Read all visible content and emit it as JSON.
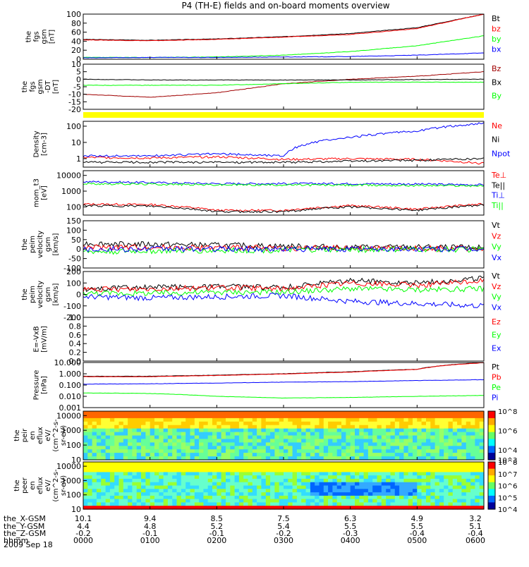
{
  "title": "P4 (TH-E) fields and on-board moments overview",
  "date": "2009 Sep 18",
  "footer_rows": [
    {
      "label": "the_X-GSM",
      "values": [
        "10.1",
        "9.4",
        "8.5",
        "7.5",
        "6.3",
        "4.9",
        "3.2"
      ]
    },
    {
      "label": "the_Y-GSM",
      "values": [
        "4.4",
        "4.8",
        "5.2",
        "5.4",
        "5.5",
        "5.5",
        "5.1"
      ]
    },
    {
      "label": "the_Z-GSM",
      "values": [
        "-0.2",
        "-0.1",
        "-0.1",
        "-0.2",
        "-0.3",
        "-0.4",
        "-0.4"
      ]
    },
    {
      "label": "hhmm",
      "values": [
        "0000",
        "0100",
        "0200",
        "0300",
        "0400",
        "0500",
        "0600"
      ]
    }
  ],
  "colors": {
    "black": "#000000",
    "red": "#ff0000",
    "green": "#00ff00",
    "blue": "#0000ff",
    "darkred": "#a00000",
    "yellow": "#ffff00"
  },
  "chart_data": [
    {
      "id": "fgs-gsm-total",
      "type": "line",
      "ylabel_lines": [
        "the",
        "fgs",
        "gsm",
        "[nT]"
      ],
      "ylim": [
        0,
        100
      ],
      "yticks": [
        "100",
        "80",
        "60",
        "40",
        "20",
        "0"
      ],
      "x": [
        "0000",
        "0100",
        "0200",
        "0300",
        "0400",
        "0500",
        "0600"
      ],
      "series": [
        {
          "name": "Bt",
          "color": "black",
          "values": [
            44,
            42,
            45,
            50,
            57,
            70,
            100
          ]
        },
        {
          "name": "bz",
          "color": "red",
          "values": [
            43,
            41,
            44,
            49,
            55,
            68,
            100
          ]
        },
        {
          "name": "by",
          "color": "green",
          "values": [
            4,
            4,
            5,
            9,
            17,
            30,
            52
          ]
        },
        {
          "name": "bx",
          "color": "blue",
          "values": [
            3,
            4,
            4,
            5,
            6,
            9,
            14
          ]
        }
      ]
    },
    {
      "id": "fgs-gsm-detrended",
      "type": "line",
      "ylabel_lines": [
        "the",
        "fgs",
        "gsm",
        "-DT",
        "[nT]"
      ],
      "ylim": [
        -20,
        10
      ],
      "yticks": [
        "10",
        "5",
        "0",
        "-5",
        "-10",
        "-15",
        "-20"
      ],
      "series": [
        {
          "name": "Bz",
          "color": "darkred",
          "values": [
            -10,
            -12,
            -9,
            -3,
            0,
            2,
            5
          ]
        },
        {
          "name": "Bx",
          "color": "black",
          "values": [
            0,
            -0.5,
            -0.5,
            -0.5,
            -0.5,
            -0.2,
            0
          ]
        },
        {
          "name": "By",
          "color": "green",
          "values": [
            -4,
            -4,
            -4,
            -3,
            -2,
            -2,
            -2
          ]
        }
      ]
    },
    {
      "id": "density",
      "type": "line",
      "ylabel_lines": [
        "Density",
        "[cm-3]"
      ],
      "ylim": [
        0.3,
        200
      ],
      "log": true,
      "yticks": [
        "100",
        "10",
        "1"
      ],
      "series": [
        {
          "name": "Ne",
          "color": "red",
          "values": [
            1.2,
            1.1,
            1.3,
            0.9,
            1.0,
            0.9,
            0.5
          ]
        },
        {
          "name": "Ni",
          "color": "black",
          "values": [
            0.6,
            0.6,
            0.6,
            0.6,
            0.7,
            0.8,
            1.0
          ]
        },
        {
          "name": "Npot",
          "color": "blue",
          "values": [
            1.5,
            1.5,
            2.0,
            1.5,
            20,
            50,
            150
          ]
        }
      ],
      "legend_extra": [
        {
          "name": "",
          "color": "black"
        }
      ]
    },
    {
      "id": "temperature",
      "type": "line",
      "ylabel_lines": [
        "mom_t3",
        "[eV]"
      ],
      "ylim": [
        30,
        20000
      ],
      "log": true,
      "yticks": [
        "10000",
        "1000",
        "100"
      ],
      "series": [
        {
          "name": "Te⊥",
          "color": "red",
          "values": [
            150,
            140,
            60,
            60,
            120,
            70,
            150
          ]
        },
        {
          "name": "Te||",
          "color": "black",
          "values": [
            120,
            110,
            50,
            50,
            100,
            60,
            130
          ]
        },
        {
          "name": "Ti⊥",
          "color": "blue",
          "values": [
            4000,
            3500,
            3000,
            3000,
            3000,
            2800,
            2500
          ]
        },
        {
          "name": "Ti||",
          "color": "green",
          "values": [
            3000,
            2800,
            2500,
            2500,
            2400,
            2300,
            2200
          ]
        }
      ]
    },
    {
      "id": "peim-velocity",
      "type": "line",
      "ylabel_lines": [
        "the",
        "peim",
        "velocity",
        "gsm",
        "[km/s]"
      ],
      "ylim": [
        -100,
        150
      ],
      "yticks": [
        "150",
        "100",
        "50",
        "0",
        "-50",
        "-100"
      ],
      "series": [
        {
          "name": "Vt",
          "color": "black",
          "values": [
            30,
            25,
            20,
            15,
            10,
            10,
            8
          ]
        },
        {
          "name": "Vz",
          "color": "red",
          "values": [
            10,
            10,
            8,
            5,
            5,
            3,
            3
          ]
        },
        {
          "name": "Vy",
          "color": "green",
          "values": [
            -15,
            -10,
            -8,
            -5,
            -3,
            -2,
            -2
          ]
        },
        {
          "name": "Vx",
          "color": "blue",
          "values": [
            0,
            0,
            0,
            0,
            0,
            0,
            0
          ]
        }
      ]
    },
    {
      "id": "peim-velocity-2",
      "type": "line",
      "ylabel_lines": [
        "the",
        "peim",
        "velocity",
        "gsm",
        "[km/s]"
      ],
      "ylim": [
        -200,
        200
      ],
      "yticks": [
        "200",
        "100",
        "0",
        "-100",
        "-200"
      ],
      "series": [
        {
          "name": "Vt",
          "color": "black",
          "values": [
            50,
            60,
            70,
            60,
            120,
            100,
            140
          ]
        },
        {
          "name": "Vz",
          "color": "red",
          "values": [
            40,
            50,
            60,
            50,
            100,
            80,
            120
          ]
        },
        {
          "name": "Vy",
          "color": "green",
          "values": [
            10,
            10,
            20,
            20,
            50,
            40,
            50
          ]
        },
        {
          "name": "Vx",
          "color": "blue",
          "values": [
            -20,
            -30,
            -20,
            -10,
            -60,
            -80,
            -100
          ]
        }
      ]
    },
    {
      "id": "efield",
      "type": "line",
      "ylabel_lines": [
        "E=-VxB",
        "[mV/m]"
      ],
      "ylim": [
        0,
        1
      ],
      "yticks": [
        "1.0",
        "0.8",
        "0.6",
        "0.4",
        "0.2",
        "0.0"
      ],
      "series": [
        {
          "name": "Ez",
          "color": "red",
          "values": []
        },
        {
          "name": "Ey",
          "color": "green",
          "values": []
        },
        {
          "name": "Ex",
          "color": "blue",
          "values": []
        }
      ]
    },
    {
      "id": "pressure",
      "type": "line",
      "ylabel_lines": [
        "Pressure",
        "[nPa]"
      ],
      "ylim": [
        0.001,
        10
      ],
      "log": true,
      "yticks": [
        "10.000",
        "1.000",
        "0.100",
        "0.010",
        "0.001"
      ],
      "series": [
        {
          "name": "Pt",
          "color": "black",
          "values": [
            0.6,
            0.6,
            0.75,
            1.0,
            1.5,
            2.5,
            10
          ]
        },
        {
          "name": "Pb",
          "color": "red",
          "values": [
            0.55,
            0.55,
            0.7,
            0.95,
            1.4,
            2.4,
            9.5
          ]
        },
        {
          "name": "Pe",
          "color": "green",
          "values": [
            0.02,
            0.018,
            0.01,
            0.007,
            0.008,
            0.01,
            0.012
          ]
        },
        {
          "name": "Pi",
          "color": "blue",
          "values": [
            0.12,
            0.13,
            0.15,
            0.18,
            0.2,
            0.25,
            0.3
          ]
        }
      ]
    },
    {
      "id": "peir-energy-flux",
      "type": "heatmap",
      "ylabel_lines": [
        "the",
        "peir",
        "en",
        "eflux",
        "eV/",
        "(cm^2-s-",
        "sr-eV)"
      ],
      "ylim": [
        10,
        20000
      ],
      "log": true,
      "yticks": [
        "10000",
        "1000",
        "100",
        "10"
      ],
      "colorbar_ticks": [
        "10^8",
        "10^6",
        "10^4",
        "10^3"
      ],
      "colorbar_range": [
        1000,
        100000000
      ]
    },
    {
      "id": "peer-energy-flux",
      "type": "heatmap",
      "ylabel_lines": [
        "the",
        "peer",
        "en",
        "eflux",
        "eV/",
        "(cm^2-s-",
        "sr-eV)"
      ],
      "ylim": [
        10,
        20000
      ],
      "log": true,
      "yticks": [
        "10000",
        "1000",
        "100",
        "10"
      ],
      "colorbar_ticks": [
        "10^8",
        "10^7",
        "10^6",
        "10^5",
        "10^4"
      ],
      "colorbar_range": [
        10000,
        100000000
      ]
    }
  ]
}
